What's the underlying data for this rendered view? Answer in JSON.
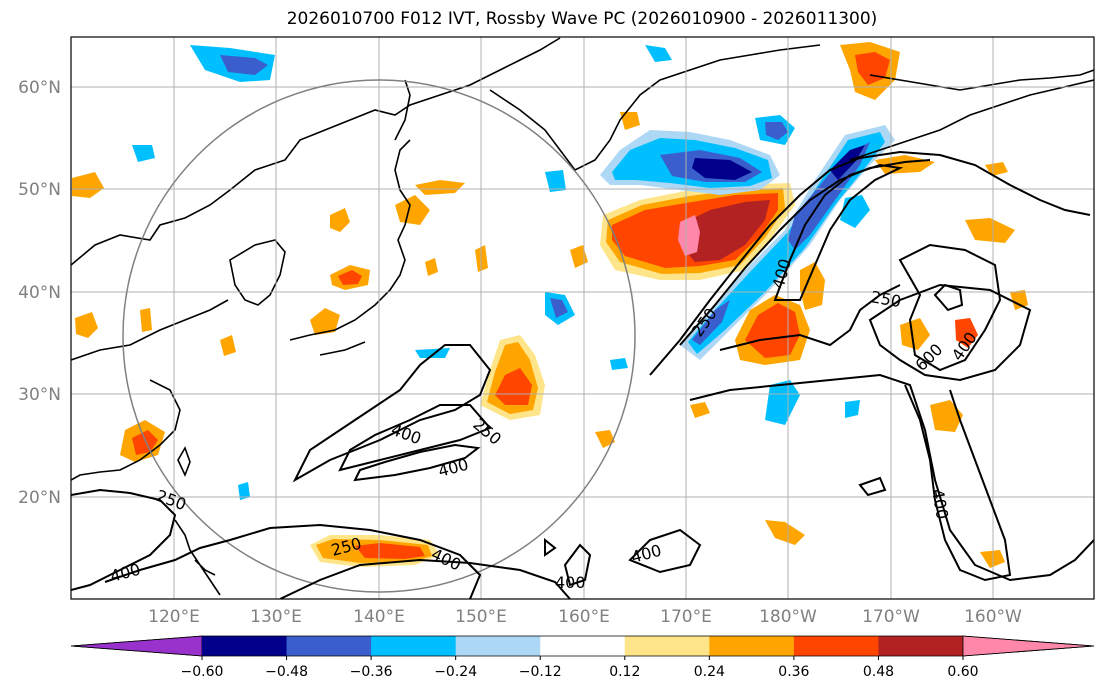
{
  "title": "2026010700 F012 IVT, Rossby Wave PC (2026010900 - 2026011300)",
  "lat_ticks": [
    "60°N",
    "50°N",
    "40°N",
    "30°N",
    "20°N"
  ],
  "lon_ticks": [
    "120°E",
    "130°E",
    "140°E",
    "150°E",
    "160°E",
    "170°E",
    "180°W",
    "170°W",
    "160°W"
  ],
  "colorbar": {
    "levels": [
      "−0.60",
      "−0.48",
      "−0.36",
      "−0.24",
      "−0.12",
      "0.12",
      "0.24",
      "0.36",
      "0.48",
      "0.60"
    ],
    "colors": [
      "#9932cc",
      "#00008b",
      "#3a5fcd",
      "#00bfff",
      "#add8f5",
      "#ffffff",
      "#ffe58a",
      "#ffa500",
      "#ff4500",
      "#b22222",
      "#ff88aa"
    ]
  },
  "contour_labels": [
    "250",
    "400",
    "400",
    "250",
    "400",
    "250",
    "400",
    "400",
    "250",
    "400",
    "400",
    "250",
    "600",
    "400",
    "400"
  ],
  "map": {
    "projection": "PlateCarree",
    "lon_range": [
      110,
      210
    ],
    "lat_range": [
      10,
      65
    ],
    "fill_field": "Rossby Wave PC",
    "contour_field": "IVT",
    "contour_levels": [
      250,
      400,
      600
    ]
  }
}
